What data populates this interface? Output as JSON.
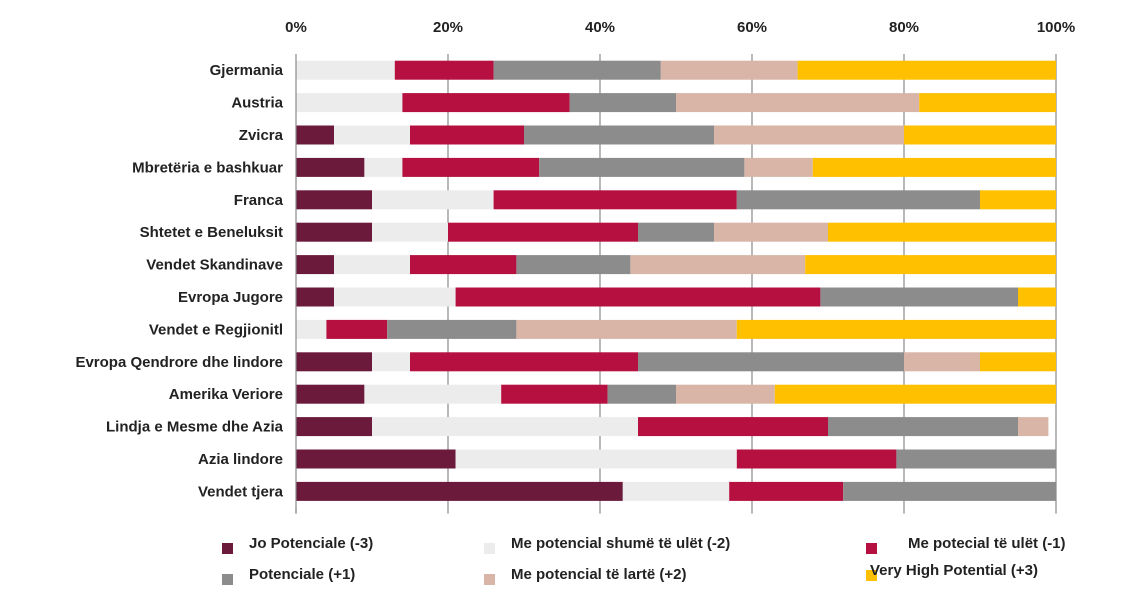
{
  "chart_data": {
    "type": "bar",
    "orientation": "horizontal",
    "stacked": "percent",
    "categories": [
      "Gjermania",
      "Austria",
      "Zvicra",
      "Mbretëria e bashkuar",
      "Franca",
      "Shtetet e Beneluksit",
      "Vendet Skandinave",
      "Evropa Jugore",
      "Vendet e Regjionitl",
      "Evropa Qendrore dhe lindore",
      "Amerika Veriore",
      "Lindja e Mesme dhe Azia",
      "Azia lindore",
      "Vendet tjera"
    ],
    "series": [
      {
        "name": "Jo Potenciale (-3)",
        "color": "#6b1a3c",
        "values": [
          0,
          0,
          5,
          9,
          10,
          10,
          5,
          5,
          0,
          10,
          9,
          10,
          21,
          43
        ]
      },
      {
        "name": "Me potencial shumë të ulët (-2)",
        "color": "#ececec",
        "values": [
          13,
          14,
          10,
          5,
          16,
          10,
          10,
          16,
          4,
          5,
          18,
          35,
          37,
          14
        ]
      },
      {
        "name": "Me potecial të ulët (-1)",
        "color": "#b5103f",
        "values": [
          13,
          22,
          15,
          18,
          32,
          25,
          14,
          48,
          8,
          30,
          14,
          25,
          21,
          15
        ]
      },
      {
        "name": "Potenciale (+1)",
        "color": "#8c8c8c",
        "values": [
          22,
          14,
          25,
          27,
          32,
          10,
          15,
          26,
          17,
          35,
          9,
          25,
          21,
          28
        ]
      },
      {
        "name": "Me potencial të lartë (+2)",
        "color": "#d8b5a6",
        "values": [
          18,
          32,
          25,
          9,
          0,
          15,
          23,
          0,
          29,
          10,
          13,
          4,
          0,
          0
        ]
      },
      {
        "name": "Very High Potential (+3)",
        "color": "#ffc000",
        "values": [
          34,
          18,
          20,
          32,
          10,
          30,
          33,
          5,
          42,
          10,
          37,
          0,
          0,
          0
        ]
      }
    ],
    "xlim": [
      0,
      100
    ],
    "tick_labels": [
      "0%",
      "20%",
      "40%",
      "60%",
      "80%",
      "100%"
    ],
    "tick_values": [
      0,
      20,
      40,
      60,
      80,
      100
    ],
    "axis_position": "top",
    "grid": true,
    "legend_position": "bottom",
    "title": "",
    "xlabel": "",
    "ylabel": ""
  }
}
